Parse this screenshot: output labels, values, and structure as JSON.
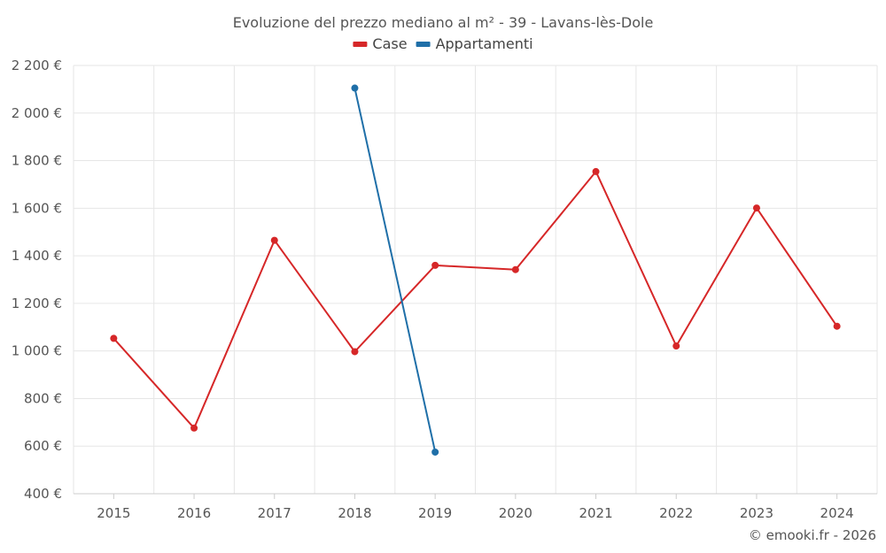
{
  "chart_data": {
    "type": "line",
    "title": "Evoluzione del prezzo mediano al m² - 39 - Lavans-lès-Dole",
    "x": [
      "2015",
      "2016",
      "2017",
      "2018",
      "2019",
      "2020",
      "2021",
      "2022",
      "2023",
      "2024"
    ],
    "ylim": [
      400,
      2200
    ],
    "y_ticks": [
      400,
      600,
      800,
      1000,
      1200,
      1400,
      1600,
      1800,
      2000,
      2200
    ],
    "y_tick_labels": [
      "400 €",
      "600 €",
      "800 €",
      "1 000 €",
      "1 200 €",
      "1 400 €",
      "1 600 €",
      "1 800 €",
      "2 000 €",
      "2 200 €"
    ],
    "grid": true,
    "legend_position": "top",
    "series": [
      {
        "name": "Case",
        "color": "#d62728",
        "values": [
          1053,
          676,
          1465,
          997,
          1360,
          1342,
          1754,
          1021,
          1601,
          1104
        ]
      },
      {
        "name": "Appartamenti",
        "color": "#1f6fa8",
        "values": [
          null,
          null,
          null,
          2105,
          575,
          null,
          null,
          null,
          null,
          null
        ]
      }
    ]
  },
  "credit": "© emooki.fr - 2026"
}
